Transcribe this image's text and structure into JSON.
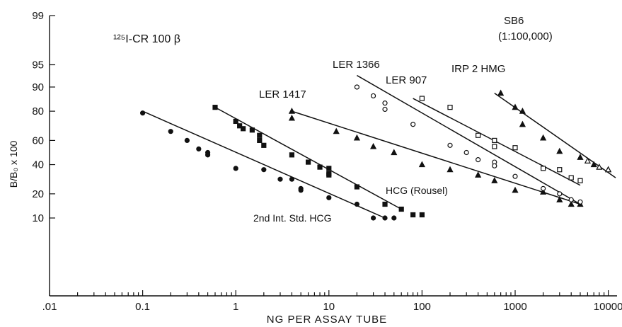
{
  "chart_data": {
    "type": "scatter",
    "title": "",
    "xlabel": "NG PER ASSAY TUBE",
    "ylabel": "B/B₀ x 100",
    "xscale": "log",
    "yscale": "logit",
    "xlim": [
      0.01,
      15000
    ],
    "ylim": [
      1,
      99
    ],
    "grid": false,
    "legend": "none",
    "x_tick_labels": [
      ".01",
      "0.1",
      "1",
      "10",
      "100",
      "1000",
      "10000"
    ],
    "x_tick_values": [
      0.01,
      0.1,
      1,
      10,
      100,
      1000,
      10000
    ],
    "y_tick_labels": [
      "10",
      "20",
      "40",
      "60",
      "80",
      "90",
      "95",
      "99"
    ],
    "y_tick_values": [
      10,
      20,
      40,
      60,
      80,
      90,
      95,
      99
    ],
    "annotations": [
      {
        "id": "tracer",
        "text": "¹²⁵I-CR  100 β"
      },
      {
        "id": "sb6-a",
        "text": "SB6"
      },
      {
        "id": "sb6-b",
        "text": "(1:100,000)"
      },
      {
        "id": "ler1417",
        "text": "LER 1417"
      },
      {
        "id": "ler1366",
        "text": "LER 1366"
      },
      {
        "id": "ler907",
        "text": "LER 907"
      },
      {
        "id": "irp2",
        "text": "IRP 2 HMG"
      },
      {
        "id": "rousel",
        "text": "HCG (Rousel)"
      },
      {
        "id": "intstd",
        "text": "2nd Int. Std. HCG"
      }
    ],
    "series": [
      {
        "name": "2nd Int. Std. HCG",
        "marker": "filled-circle",
        "fit": [
          [
            0.1,
            80
          ],
          [
            40,
            10
          ]
        ],
        "points": [
          [
            0.1,
            79
          ],
          [
            0.2,
            67
          ],
          [
            0.3,
            60
          ],
          [
            0.4,
            53
          ],
          [
            0.5,
            50
          ],
          [
            0.5,
            48
          ],
          [
            1,
            37
          ],
          [
            2,
            36
          ],
          [
            3,
            29
          ],
          [
            4,
            29
          ],
          [
            5,
            23
          ],
          [
            5,
            22
          ],
          [
            10,
            18
          ],
          [
            20,
            15
          ],
          [
            30,
            10
          ],
          [
            40,
            10
          ],
          [
            50,
            10
          ]
        ]
      },
      {
        "name": "HCG (Rousel)",
        "marker": "filled-square",
        "fit": [
          [
            0.6,
            82
          ],
          [
            60,
            13
          ]
        ],
        "points": [
          [
            0.6,
            82
          ],
          [
            1,
            74
          ],
          [
            1.1,
            71
          ],
          [
            1.2,
            69
          ],
          [
            1.5,
            68
          ],
          [
            1.8,
            64
          ],
          [
            1.8,
            60
          ],
          [
            2,
            56
          ],
          [
            4,
            48
          ],
          [
            6,
            42
          ],
          [
            8,
            38
          ],
          [
            10,
            37
          ],
          [
            10,
            33
          ],
          [
            10,
            32
          ],
          [
            20,
            24
          ],
          [
            40,
            15
          ],
          [
            60,
            13
          ],
          [
            80,
            11
          ],
          [
            100,
            11
          ]
        ]
      },
      {
        "name": "LER 1417",
        "marker": "filled-triangle",
        "fit": [
          [
            4,
            80
          ],
          [
            5000,
            15
          ]
        ],
        "points": [
          [
            4,
            80
          ],
          [
            4,
            76
          ],
          [
            12,
            67
          ],
          [
            20,
            62
          ],
          [
            30,
            55
          ],
          [
            50,
            50
          ],
          [
            100,
            40
          ],
          [
            200,
            36
          ],
          [
            400,
            32
          ],
          [
            600,
            28
          ],
          [
            1000,
            22
          ],
          [
            2000,
            21
          ],
          [
            3000,
            17
          ],
          [
            4000,
            15
          ],
          [
            5000,
            15
          ]
        ]
      },
      {
        "name": "LER 1366",
        "marker": "open-circle",
        "fit": [
          [
            20,
            93
          ],
          [
            5000,
            15
          ]
        ],
        "points": [
          [
            20,
            90
          ],
          [
            30,
            87
          ],
          [
            40,
            84
          ],
          [
            40,
            81
          ],
          [
            80,
            72
          ],
          [
            200,
            56
          ],
          [
            300,
            50
          ],
          [
            400,
            44
          ],
          [
            600,
            42
          ],
          [
            600,
            39
          ],
          [
            1000,
            31
          ],
          [
            2000,
            23
          ],
          [
            3000,
            20
          ],
          [
            4000,
            17
          ],
          [
            5000,
            16
          ]
        ]
      },
      {
        "name": "LER 907",
        "marker": "open-square",
        "fit": [
          [
            80,
            86
          ],
          [
            5000,
            25
          ]
        ],
        "points": [
          [
            100,
            86
          ],
          [
            200,
            82
          ],
          [
            400,
            64
          ],
          [
            600,
            60
          ],
          [
            600,
            55
          ],
          [
            1000,
            54
          ],
          [
            2000,
            37
          ],
          [
            3000,
            36
          ],
          [
            4000,
            30
          ],
          [
            5000,
            28
          ]
        ]
      },
      {
        "name": "IRP 2 HMG",
        "marker": "filled-triangle",
        "fit": [
          [
            600,
            88
          ],
          [
            12000,
            30
          ]
        ],
        "points": [
          [
            700,
            88
          ],
          [
            1000,
            82
          ],
          [
            1200,
            80
          ],
          [
            1200,
            72
          ],
          [
            2000,
            62
          ],
          [
            3000,
            51
          ],
          [
            5000,
            46
          ],
          [
            7000,
            40
          ],
          [
            10000,
            36
          ]
        ]
      },
      {
        "name": "SB6",
        "marker": "open-triangle",
        "points": [
          [
            6000,
            43
          ],
          [
            8000,
            38
          ],
          [
            10000,
            36
          ]
        ]
      }
    ]
  }
}
